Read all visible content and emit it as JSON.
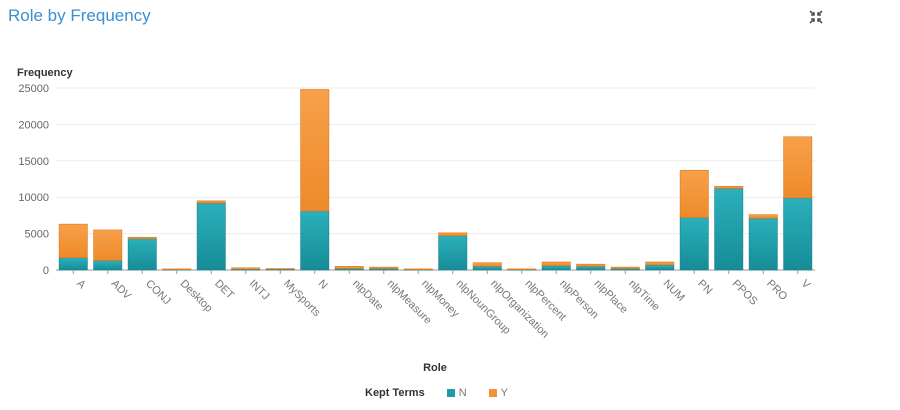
{
  "title": "Role by Frequency",
  "icons": {
    "maximize": "collapse-icon"
  },
  "chart_data": {
    "type": "bar",
    "stacked": true,
    "title": "Role by Frequency",
    "xlabel": "Role",
    "ylabel": "Frequency",
    "ylim": [
      0,
      25000
    ],
    "yticks": [
      0,
      5000,
      10000,
      15000,
      20000,
      25000
    ],
    "grid": true,
    "legend_position": "bottom",
    "legend_title": "Kept Terms",
    "categories": [
      "A",
      "ADV",
      "CONJ",
      "Desktop",
      "DET",
      "INTJ",
      "MySports",
      "N",
      "nlpDate",
      "nlpMeasure",
      "nlpMoney",
      "nlpNounGroup",
      "nlpOrganization",
      "nlpPercent",
      "nlpPerson",
      "nlpPlace",
      "nlpTime",
      "NUM",
      "PN",
      "PPOS",
      "PRO",
      "V"
    ],
    "series": [
      {
        "name": "N",
        "color": "#1f9aa6",
        "values": [
          1700,
          1300,
          4300,
          100,
          9200,
          100,
          100,
          8100,
          200,
          200,
          100,
          4700,
          500,
          100,
          600,
          500,
          200,
          700,
          7200,
          11200,
          7100,
          9900
        ]
      },
      {
        "name": "Y",
        "color": "#f39232",
        "values": [
          4600,
          4200,
          200,
          50,
          300,
          200,
          100,
          16700,
          300,
          200,
          50,
          400,
          500,
          50,
          500,
          300,
          200,
          400,
          6500,
          300,
          500,
          8400
        ]
      }
    ]
  }
}
